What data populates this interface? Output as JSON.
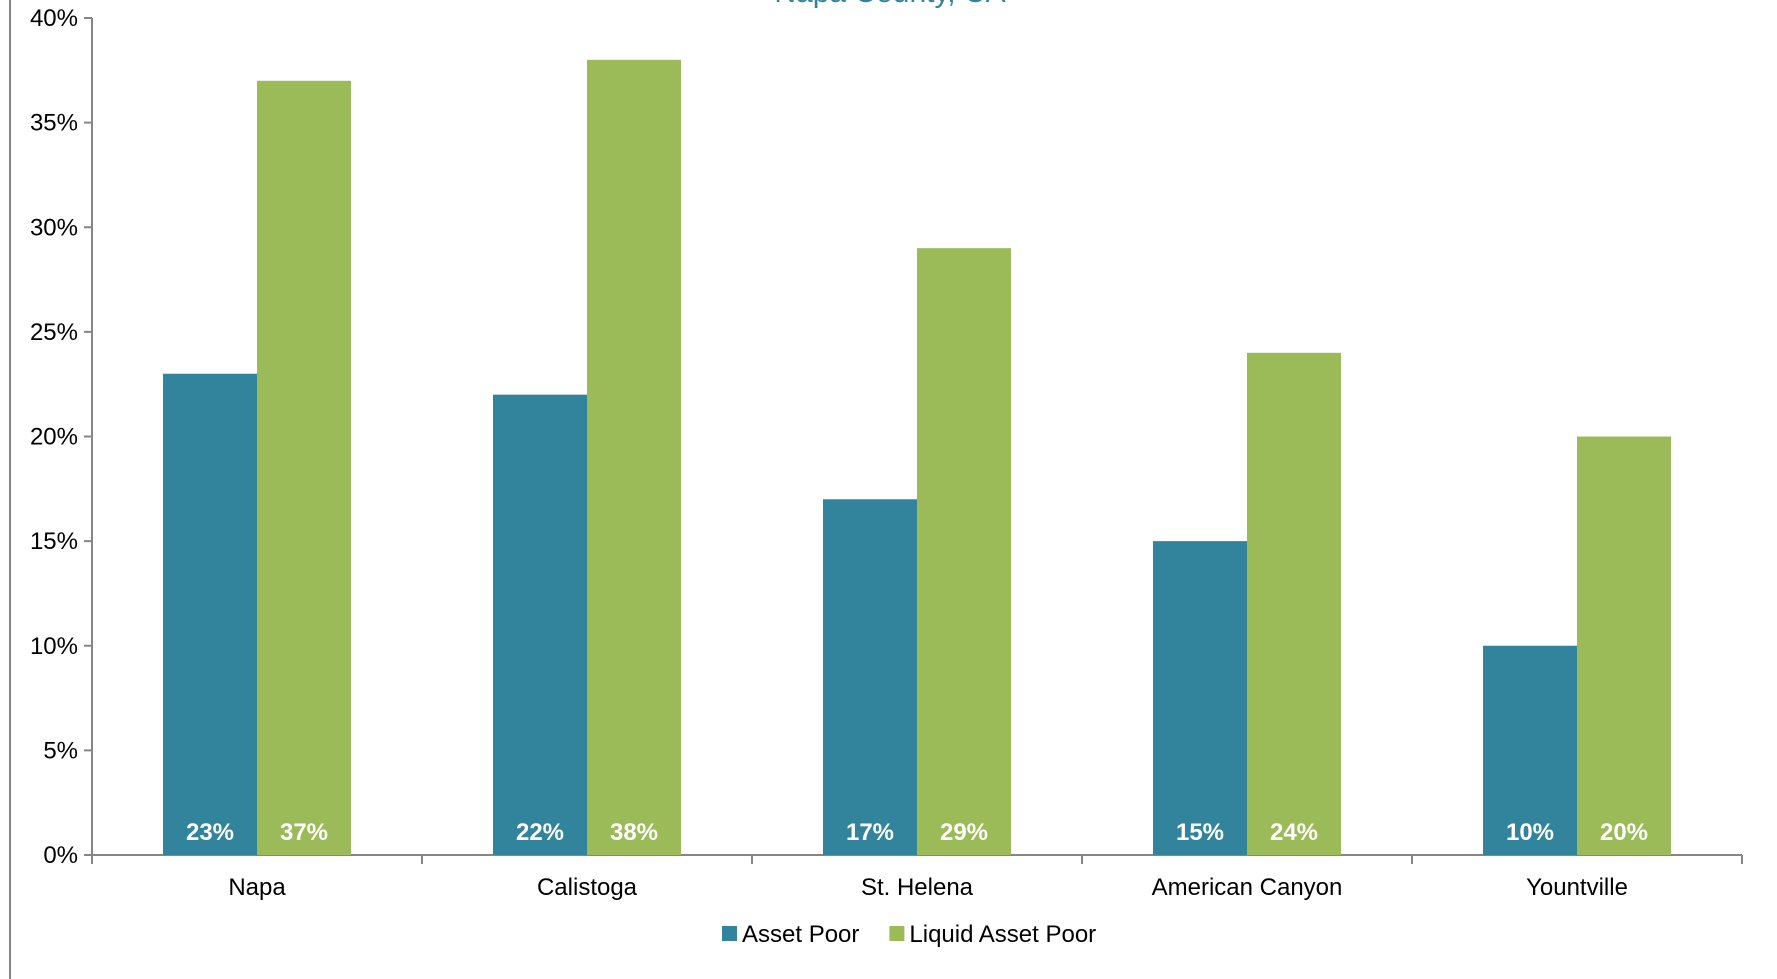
{
  "colors": {
    "asset_poor": "#31849b",
    "liquid_asset_poor": "#9bbb59",
    "title": "#31849b",
    "axis": "#868686",
    "frame": "#868686"
  },
  "chart_data": {
    "type": "bar",
    "title": "Napa County, CA",
    "categories": [
      "Napa",
      "Calistoga",
      "St. Helena",
      "American Canyon",
      "Yountville"
    ],
    "series": [
      {
        "name": "Asset Poor",
        "values": [
          23,
          22,
          17,
          15,
          10
        ],
        "labels": [
          "23%",
          "22%",
          "17%",
          "15%",
          "10%"
        ]
      },
      {
        "name": "Liquid Asset Poor",
        "values": [
          37,
          38,
          29,
          24,
          20
        ],
        "labels": [
          "37%",
          "38%",
          "29%",
          "24%",
          "20%"
        ]
      }
    ],
    "ylim": [
      0,
      40
    ],
    "y_ticks": [
      0,
      5,
      10,
      15,
      20,
      25,
      30,
      35,
      40
    ],
    "y_tick_labels": [
      "0%",
      "5%",
      "10%",
      "15%",
      "20%",
      "25%",
      "30%",
      "35%",
      "40%"
    ],
    "xlabel": "",
    "ylabel": "",
    "grid": false,
    "legend_position": "bottom",
    "data_labels_position": "inside-base"
  }
}
